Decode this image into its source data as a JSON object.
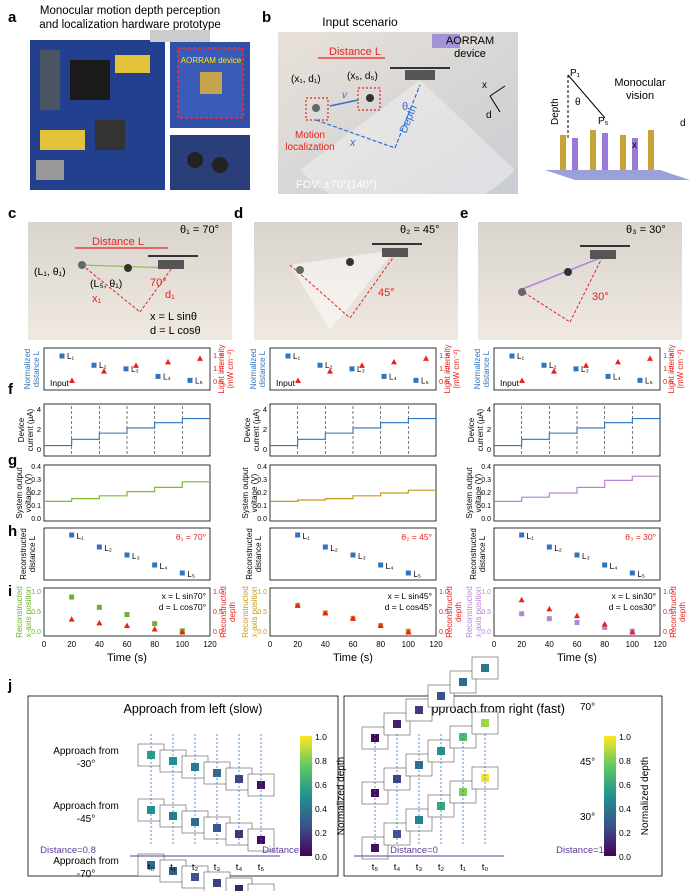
{
  "panel_letters": [
    "a",
    "b",
    "c",
    "d",
    "e",
    "f",
    "g",
    "h",
    "i",
    "j"
  ],
  "panel_a": {
    "title_line1": "Monocular motion depth perception",
    "title_line2": "and localization hardware prototype",
    "device_label": "AORRAM device"
  },
  "panel_b": {
    "title": "Input scenario",
    "distance_label": "Distance L",
    "point1": "(x₁, d₁)",
    "point5": "(x₅, d₅)",
    "device_line1": "AORRAM",
    "device_line2": "device",
    "motion_line1": "Motion",
    "motion_line2": "localization",
    "depth_label": "Depth",
    "x_label": "x",
    "v_label": "v",
    "theta_label": "θ",
    "axis_x": "x",
    "axis_d": "d",
    "fov": "FOV: ±70°(140°)",
    "mono_line1": "Monocular",
    "mono_line2": "vision",
    "p1": "P₁",
    "p5": "P₅",
    "mono_depth": "Depth",
    "mono_x": "x",
    "mono_d": "d"
  },
  "scenes": [
    {
      "theta_title": "θ₁ = 70°",
      "angle": "70°",
      "distance_label": "Distance L",
      "l1": "(L₁, θ₁)",
      "l5": "(L₅, θ₁)",
      "x1": "x₁",
      "d1": "d₁",
      "eq1": "x = L sinθ",
      "eq2": "d = L cosθ"
    },
    {
      "theta_title": "θ₂ = 45°",
      "angle": "45°"
    },
    {
      "theta_title": "θ₃ = 30°",
      "angle": "30°"
    }
  ],
  "axis_labels": {
    "norm_dist_1": "Normalized",
    "norm_dist_2": "distance L",
    "light_1": "Light intensity",
    "light_2": "(mW cm⁻²)",
    "light_ticks": [
      "1.5",
      "1.0",
      "0.5"
    ],
    "input": "Input",
    "curr_1": "Device",
    "curr_2": "current (μA)",
    "volt_1": "System output",
    "volt_2": "voltage (V)",
    "rec_dist_1": "Reconstructed",
    "rec_dist_2": "distance L",
    "rec_x_1": "Reconstructed",
    "rec_x_2": "x-axis position",
    "rec_d_1": "Reconstructed",
    "rec_d_2": "depth",
    "time": "Time (s)",
    "time_ticks": [
      "0",
      "20",
      "40",
      "60",
      "80",
      "100",
      "120"
    ],
    "curr_ticks": [
      "4",
      "2",
      "0"
    ],
    "volt_ticks": [
      "0.4",
      "0.3",
      "0.2",
      "0.1",
      "0.0"
    ],
    "unit_ticks": [
      "1.0",
      "0.5",
      "0.0"
    ],
    "l_labels": [
      "L₁",
      "L₂",
      "L₃",
      "L₄",
      "L₅"
    ]
  },
  "chart_data": [
    {
      "type": "scatter",
      "panel": "c-input",
      "x": [
        1,
        2,
        3,
        4,
        5
      ],
      "series": [
        {
          "name": "Normalized distance L",
          "values": [
            1.0,
            0.67,
            0.54,
            0.27,
            0.13
          ]
        },
        {
          "name": "Light intensity",
          "values": [
            0.55,
            0.95,
            1.2,
            1.35,
            1.5
          ]
        }
      ]
    },
    {
      "type": "line",
      "panel": "f",
      "xlim": [
        0,
        120
      ],
      "ylabel": "Device current (μA)",
      "steps": [
        [
          0,
          1.0
        ],
        [
          20,
          1.6
        ],
        [
          40,
          2.2
        ],
        [
          60,
          2.7
        ],
        [
          80,
          3.2
        ],
        [
          100,
          3.6
        ]
      ],
      "colors": [
        "#2f74c0",
        "#2f74c0",
        "#2f74c0"
      ]
    },
    {
      "type": "line",
      "panel": "g",
      "xlim": [
        0,
        120
      ],
      "ylim": [
        0,
        0.4
      ],
      "ylabel": "System output voltage (V)",
      "series": [
        {
          "name": "70",
          "color": "#7cbd2d",
          "levels": [
            0.14,
            0.16,
            0.18,
            0.21,
            0.24,
            0.28
          ]
        },
        {
          "name": "45",
          "color": "#c69a1e",
          "levels": [
            0.14,
            0.15,
            0.16,
            0.18,
            0.2,
            0.22
          ]
        },
        {
          "name": "30",
          "color": "#b684d6",
          "levels": [
            0.14,
            0.17,
            0.2,
            0.24,
            0.29,
            0.32
          ]
        }
      ]
    },
    {
      "type": "scatter",
      "panel": "h",
      "x": [
        20,
        40,
        60,
        80,
        100
      ],
      "values": [
        1.0,
        0.7,
        0.5,
        0.25,
        0.05
      ],
      "labels": [
        "θ₁ = 70°",
        "θ₂ = 45°",
        "θ₃ = 30°"
      ]
    },
    {
      "type": "scatter",
      "panel": "i",
      "x": [
        20,
        40,
        60,
        80,
        100
      ],
      "series": [
        {
          "name": "θ=70 x",
          "color": "#6bb22e",
          "values": [
            0.92,
            0.65,
            0.46,
            0.22,
            0.03
          ]
        },
        {
          "name": "θ=70 d",
          "color": "#e8221c",
          "values": [
            0.34,
            0.24,
            0.17,
            0.08,
            0.0
          ]
        },
        {
          "name": "θ=45 x",
          "color": "#c69a1e",
          "values": [
            0.7,
            0.5,
            0.36,
            0.17,
            0.02
          ]
        },
        {
          "name": "θ=45 d",
          "color": "#e8221c",
          "values": [
            0.7,
            0.5,
            0.36,
            0.17,
            0.0
          ]
        },
        {
          "name": "θ=30 x",
          "color": "#b684d6",
          "values": [
            0.48,
            0.35,
            0.25,
            0.12,
            0.02
          ]
        },
        {
          "name": "θ=30 d",
          "color": "#e8221c",
          "values": [
            0.85,
            0.61,
            0.43,
            0.21,
            0.0
          ]
        }
      ],
      "eqs": [
        [
          "x = L sin70°",
          "d = L cos70°"
        ],
        [
          "x = L sin45°",
          "d = L cos45°"
        ],
        [
          "x = L sin30°",
          "d = L cos30°"
        ]
      ]
    },
    {
      "type": "heatmap",
      "panel": "j-left",
      "title": "Approach from left (slow)",
      "rows": [
        "Approach from -30°",
        "Approach from -45°",
        "Approach from -70°"
      ],
      "times": [
        "t₀",
        "t₁",
        "t₂",
        "t₃",
        "t₄",
        "t₅"
      ],
      "distance_start": "Distance=0.8",
      "distance_end": "Distance=0",
      "colorbar": "Normalized depth",
      "cbar_ticks": [
        "1.0",
        "0.8",
        "0.6",
        "0.4",
        "0.2",
        "0.0"
      ],
      "values": [
        [
          0.55,
          0.5,
          0.42,
          0.33,
          0.2,
          0.05
        ],
        [
          0.5,
          0.43,
          0.35,
          0.27,
          0.15,
          0.03
        ],
        [
          0.35,
          0.3,
          0.25,
          0.2,
          0.1,
          0.02
        ]
      ]
    },
    {
      "type": "heatmap",
      "panel": "j-right",
      "title": "Approach from right (fast)",
      "rows": [
        "30°",
        "45°",
        "70°"
      ],
      "times": [
        "t₅",
        "t₄",
        "t₃",
        "t₂",
        "t₁",
        "t₀"
      ],
      "distance_start": "Distance=0",
      "distance_end": "Distance=1.0",
      "colorbar": "Normalized depth",
      "cbar_ticks": [
        "1.0",
        "0.8",
        "0.6",
        "0.4",
        "0.2",
        "0.0"
      ],
      "values": [
        [
          0.05,
          0.25,
          0.45,
          0.6,
          0.8,
          0.98
        ],
        [
          0.03,
          0.2,
          0.35,
          0.5,
          0.7,
          0.85
        ],
        [
          0.02,
          0.1,
          0.18,
          0.25,
          0.35,
          0.4
        ]
      ]
    }
  ]
}
